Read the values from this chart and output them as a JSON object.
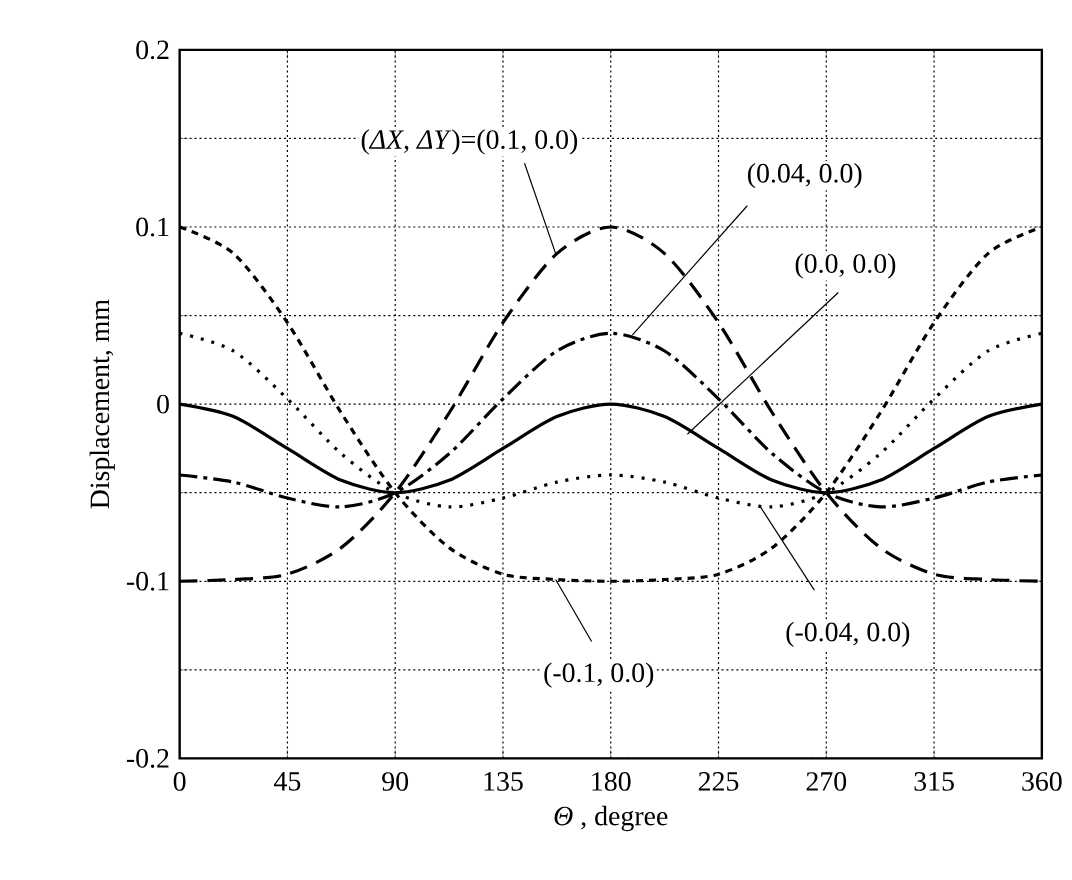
{
  "chart_data": {
    "type": "line",
    "x": [
      0,
      22.5,
      45,
      67.5,
      90,
      112.5,
      135,
      157.5,
      180,
      202.5,
      225,
      247.5,
      270,
      292.5,
      315,
      337.5,
      360
    ],
    "series": [
      {
        "color": "#000000",
        "line_style": "dashed",
        "values": [
          -0.1,
          -0.099,
          -0.096,
          -0.081,
          -0.05,
          -0.005,
          0.046,
          0.085,
          0.1,
          0.085,
          0.046,
          -0.005,
          -0.05,
          -0.081,
          -0.096,
          -0.099,
          -0.1
        ]
      },
      {
        "color": "#000000",
        "line_style": "dashdot",
        "values": [
          -0.04,
          -0.044,
          -0.053,
          -0.058,
          -0.05,
          -0.028,
          0.003,
          0.03,
          0.04,
          0.03,
          0.003,
          -0.028,
          -0.05,
          -0.058,
          -0.053,
          -0.044,
          -0.04
        ]
      },
      {
        "color": "#000000",
        "line_style": "solid",
        "values": [
          0,
          -0.007,
          -0.025,
          -0.043,
          -0.05,
          -0.043,
          -0.025,
          -0.007,
          0,
          -0.007,
          -0.025,
          -0.043,
          -0.05,
          -0.043,
          -0.025,
          -0.007,
          0
        ]
      },
      {
        "color": "#000000",
        "line_style": "dotted",
        "values": [
          0.04,
          0.03,
          0.003,
          -0.028,
          -0.05,
          -0.058,
          -0.053,
          -0.044,
          -0.04,
          -0.044,
          -0.053,
          -0.058,
          -0.05,
          -0.028,
          0.003,
          0.03,
          0.04
        ]
      },
      {
        "color": "#000000",
        "line_style": "shortdash",
        "values": [
          0.1,
          0.085,
          0.046,
          -0.005,
          -0.05,
          -0.081,
          -0.096,
          -0.099,
          -0.1,
          -0.099,
          -0.096,
          -0.081,
          -0.05,
          -0.005,
          0.046,
          0.085,
          0.1
        ]
      }
    ],
    "xlabel": "*Θ* , degree",
    "ylabel": "Displacement,  mm",
    "xlim": [
      0,
      360
    ],
    "ylim": [
      -0.2,
      0.2
    ],
    "xticks": [
      0,
      45,
      90,
      135,
      180,
      225,
      270,
      315,
      360
    ],
    "yticks": [
      -0.2,
      {
        "value": -0.15,
        "label": null
      },
      -0.1,
      {
        "value": -0.05,
        "label": null
      },
      0,
      {
        "value": 0.05,
        "label": null
      },
      0.1,
      {
        "value": 0.15,
        "label": null
      },
      0.2
    ],
    "grid": true,
    "annotations": [
      {
        "text": "(*ΔX*, *ΔY*)=(0.1, 0.0)",
        "x": 157,
        "y": 0.085
      },
      {
        "text": "(0.04, 0.0)",
        "x": 189,
        "y": 0.039
      },
      {
        "text": "(0.0, 0.0)",
        "x": 212,
        "y": -0.017
      },
      {
        "text": "(-0.04, 0.0)",
        "x": 242,
        "y": -0.057
      },
      {
        "text": "(-0.1, 0.0)",
        "x": 157,
        "y": -0.099
      }
    ]
  }
}
